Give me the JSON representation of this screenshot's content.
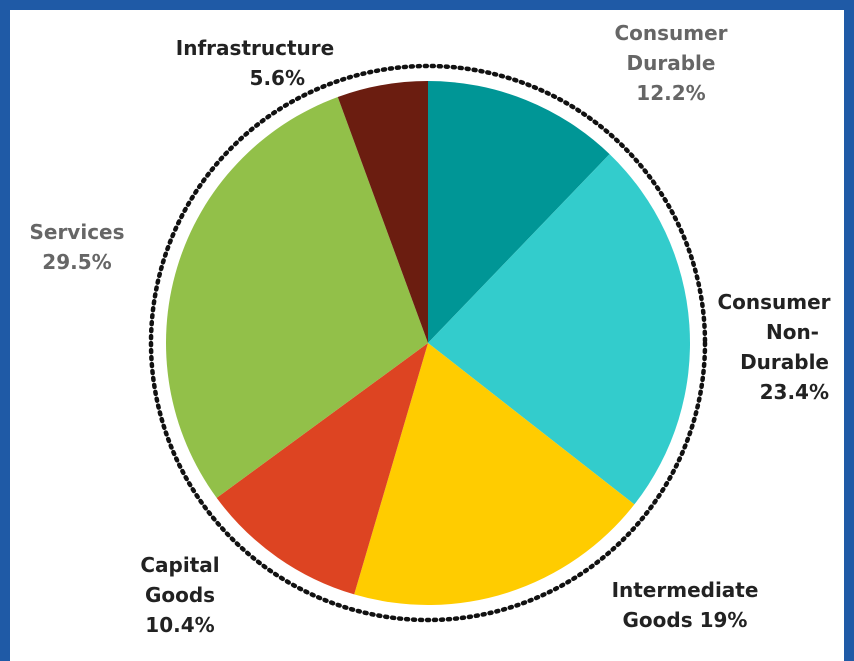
{
  "chart_data": {
    "type": "pie",
    "title": "",
    "slices": [
      {
        "label": "Consumer Durable",
        "value": 12.2,
        "color": "#009696"
      },
      {
        "label": "Consumer Non-Durable",
        "value": 23.4,
        "color": "#33cccc"
      },
      {
        "label": "Intermediate Goods",
        "value": 19,
        "color": "#ffcc00"
      },
      {
        "label": "Capital Goods",
        "value": 10.4,
        "color": "#dd4422"
      },
      {
        "label": "Services",
        "value": 29.5,
        "color": "#92c049"
      },
      {
        "label": "Infrastructure",
        "value": 5.6,
        "color": "#6b1d10"
      }
    ],
    "border": "dotted ring",
    "legend": "none"
  },
  "labels": {
    "consumer_durable": [
      "Consumer",
      "Durable",
      "12.2%"
    ],
    "consumer_non_durable": [
      "Consumer",
      "Non-",
      "Durable",
      "23.4%"
    ],
    "intermediate_goods": [
      "Intermediate",
      "Goods 19%"
    ],
    "capital_goods": [
      "Capital",
      "Goods",
      "10.4%"
    ],
    "services": [
      "Services",
      "29.5%"
    ],
    "infrastructure": [
      "Infrastructure",
      "5.6%"
    ]
  }
}
